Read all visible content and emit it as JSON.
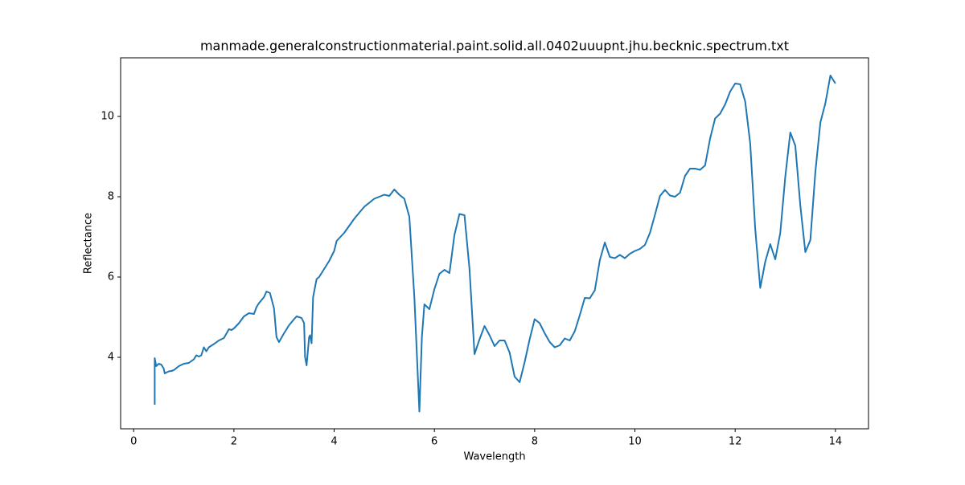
{
  "chart_data": {
    "type": "line",
    "title": "manmade.generalconstructionmaterial.paint.solid.all.0402uuupnt.jhu.becknic.spectrum.txt",
    "x_label": "Wavelength",
    "y_label": "Reflectance",
    "xlim": [
      -0.26,
      14.66
    ],
    "ylim": [
      2.22,
      11.46
    ],
    "xticks": [
      0,
      2,
      4,
      6,
      8,
      10,
      12,
      14
    ],
    "yticks": [
      4,
      6,
      8,
      10
    ],
    "series": [
      {
        "color": "#1f77b4",
        "x": [
          0.42,
          0.42,
          0.45,
          0.5,
          0.55,
          0.6,
          0.62,
          0.65,
          0.7,
          0.75,
          0.8,
          0.9,
          1.0,
          1.1,
          1.2,
          1.25,
          1.3,
          1.35,
          1.4,
          1.45,
          1.5,
          1.6,
          1.7,
          1.8,
          1.9,
          1.95,
          2.0,
          2.1,
          2.2,
          2.3,
          2.4,
          2.45,
          2.5,
          2.6,
          2.65,
          2.72,
          2.8,
          2.85,
          2.9,
          3.0,
          3.1,
          3.2,
          3.25,
          3.35,
          3.4,
          3.42,
          3.45,
          3.5,
          3.52,
          3.55,
          3.58,
          3.65,
          3.7,
          3.8,
          3.9,
          4.0,
          4.05,
          4.2,
          4.4,
          4.6,
          4.8,
          5.0,
          5.1,
          5.2,
          5.3,
          5.4,
          5.5,
          5.6,
          5.7,
          5.75,
          5.8,
          5.9,
          6.0,
          6.1,
          6.2,
          6.3,
          6.4,
          6.5,
          6.6,
          6.7,
          6.8,
          6.9,
          7.0,
          7.1,
          7.2,
          7.3,
          7.4,
          7.5,
          7.6,
          7.7,
          7.8,
          7.9,
          8.0,
          8.1,
          8.2,
          8.3,
          8.4,
          8.5,
          8.6,
          8.7,
          8.8,
          8.9,
          9.0,
          9.1,
          9.2,
          9.3,
          9.4,
          9.5,
          9.6,
          9.7,
          9.8,
          9.9,
          10.0,
          10.1,
          10.2,
          10.3,
          10.4,
          10.5,
          10.6,
          10.7,
          10.8,
          10.9,
          11.0,
          11.1,
          11.2,
          11.3,
          11.4,
          11.5,
          11.6,
          11.7,
          11.8,
          11.9,
          12.0,
          12.1,
          12.2,
          12.3,
          12.4,
          12.5,
          12.6,
          12.7,
          12.8,
          12.9,
          13.0,
          13.1,
          13.2,
          13.3,
          13.4,
          13.5,
          13.6,
          13.7,
          13.8,
          13.9,
          14.0
        ],
        "values": [
          2.82,
          3.98,
          3.78,
          3.84,
          3.82,
          3.72,
          3.6,
          3.62,
          3.65,
          3.66,
          3.68,
          3.78,
          3.84,
          3.86,
          3.95,
          4.05,
          4.02,
          4.05,
          4.25,
          4.15,
          4.25,
          4.33,
          4.42,
          4.48,
          4.7,
          4.68,
          4.72,
          4.85,
          5.02,
          5.1,
          5.08,
          5.25,
          5.35,
          5.5,
          5.64,
          5.6,
          5.22,
          4.5,
          4.38,
          4.6,
          4.8,
          4.95,
          5.02,
          4.98,
          4.85,
          4.0,
          3.8,
          4.5,
          4.55,
          4.35,
          5.5,
          5.95,
          6.0,
          6.2,
          6.4,
          6.65,
          6.9,
          7.1,
          7.45,
          7.75,
          7.95,
          8.05,
          8.02,
          8.18,
          8.05,
          7.95,
          7.5,
          5.5,
          2.65,
          4.5,
          5.32,
          5.2,
          5.7,
          6.08,
          6.18,
          6.1,
          7.05,
          7.57,
          7.54,
          6.2,
          4.08,
          4.45,
          4.78,
          4.55,
          4.28,
          4.42,
          4.42,
          4.12,
          3.52,
          3.38,
          3.88,
          4.45,
          4.95,
          4.85,
          4.6,
          4.38,
          4.25,
          4.3,
          4.47,
          4.42,
          4.65,
          5.05,
          5.48,
          5.47,
          5.67,
          6.42,
          6.86,
          6.5,
          6.47,
          6.55,
          6.47,
          6.58,
          6.65,
          6.7,
          6.8,
          7.1,
          7.55,
          8.02,
          8.17,
          8.03,
          8.0,
          8.1,
          8.52,
          8.7,
          8.7,
          8.67,
          8.78,
          9.45,
          9.95,
          10.07,
          10.3,
          10.62,
          10.82,
          10.8,
          10.37,
          9.33,
          7.2,
          5.73,
          6.38,
          6.82,
          6.44,
          7.1,
          8.5,
          9.6,
          9.27,
          7.78,
          6.62,
          6.92,
          8.62,
          9.85,
          10.33,
          11.02,
          10.82
        ]
      }
    ]
  }
}
